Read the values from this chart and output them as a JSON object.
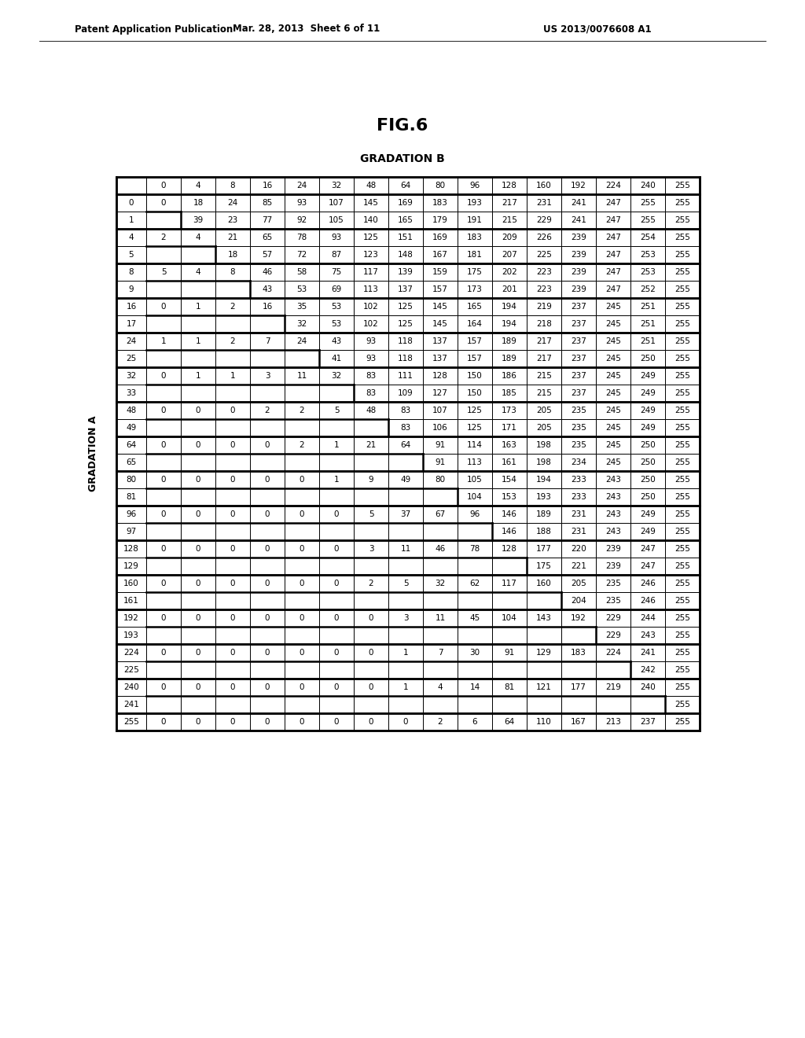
{
  "title": "FIG.6",
  "subtitle": "GRADATION B",
  "header_label_left": "GRADATION A",
  "patent_left": "Patent Application Publication",
  "patent_mid": "Mar. 28, 2013  Sheet 6 of 11",
  "patent_right": "US 2013/0076608 A1",
  "col_headers": [
    0,
    4,
    8,
    16,
    24,
    32,
    48,
    64,
    80,
    96,
    128,
    160,
    192,
    224,
    240,
    255
  ],
  "rows": [
    {
      "label": "0",
      "data": [
        "0",
        "18",
        "24",
        "85",
        "93",
        "107",
        "145",
        "169",
        "183",
        "193",
        "217",
        "231",
        "241",
        "247",
        "255",
        "255"
      ]
    },
    {
      "label": "1",
      "data": [
        null,
        "39",
        "23",
        "77",
        "92",
        "105",
        "140",
        "165",
        "179",
        "191",
        "215",
        "229",
        "241",
        "247",
        "255",
        "255"
      ]
    },
    {
      "label": "4",
      "data": [
        "2",
        "4",
        "21",
        "65",
        "78",
        "93",
        "125",
        "151",
        "169",
        "183",
        "209",
        "226",
        "239",
        "247",
        "254",
        "255"
      ]
    },
    {
      "label": "5",
      "data": [
        null,
        null,
        "18",
        "57",
        "72",
        "87",
        "123",
        "148",
        "167",
        "181",
        "207",
        "225",
        "239",
        "247",
        "253",
        "255"
      ]
    },
    {
      "label": "8",
      "data": [
        "5",
        "4",
        "8",
        "46",
        "58",
        "75",
        "117",
        "139",
        "159",
        "175",
        "202",
        "223",
        "239",
        "247",
        "253",
        "255"
      ]
    },
    {
      "label": "9",
      "data": [
        null,
        null,
        null,
        "43",
        "53",
        "69",
        "113",
        "137",
        "157",
        "173",
        "201",
        "223",
        "239",
        "247",
        "252",
        "255"
      ]
    },
    {
      "label": "16",
      "data": [
        "0",
        "1",
        "2",
        "16",
        "35",
        "53",
        "102",
        "125",
        "145",
        "165",
        "194",
        "219",
        "237",
        "245",
        "251",
        "255"
      ]
    },
    {
      "label": "17",
      "data": [
        null,
        null,
        null,
        null,
        "32",
        "53",
        "102",
        "125",
        "145",
        "164",
        "194",
        "218",
        "237",
        "245",
        "251",
        "255"
      ]
    },
    {
      "label": "24",
      "data": [
        "1",
        "1",
        "2",
        "7",
        "24",
        "43",
        "93",
        "118",
        "137",
        "157",
        "189",
        "217",
        "237",
        "245",
        "251",
        "255"
      ]
    },
    {
      "label": "25",
      "data": [
        null,
        null,
        null,
        null,
        null,
        "41",
        "93",
        "118",
        "137",
        "157",
        "189",
        "217",
        "237",
        "245",
        "250",
        "255"
      ]
    },
    {
      "label": "32",
      "data": [
        "0",
        "1",
        "1",
        "3",
        "11",
        "32",
        "83",
        "111",
        "128",
        "150",
        "186",
        "215",
        "237",
        "245",
        "249",
        "255"
      ]
    },
    {
      "label": "33",
      "data": [
        null,
        null,
        null,
        null,
        null,
        null,
        "83",
        "109",
        "127",
        "150",
        "185",
        "215",
        "237",
        "245",
        "249",
        "255"
      ]
    },
    {
      "label": "48",
      "data": [
        "0",
        "0",
        "0",
        "2",
        "2",
        "5",
        "48",
        "83",
        "107",
        "125",
        "173",
        "205",
        "235",
        "245",
        "249",
        "255"
      ]
    },
    {
      "label": "49",
      "data": [
        null,
        null,
        null,
        null,
        null,
        null,
        null,
        "83",
        "106",
        "125",
        "171",
        "205",
        "235",
        "245",
        "249",
        "255"
      ]
    },
    {
      "label": "64",
      "data": [
        "0",
        "0",
        "0",
        "0",
        "2",
        "1",
        "21",
        "64",
        "91",
        "114",
        "163",
        "198",
        "235",
        "245",
        "250",
        "255"
      ]
    },
    {
      "label": "65",
      "data": [
        null,
        null,
        null,
        null,
        null,
        null,
        null,
        null,
        "91",
        "113",
        "161",
        "198",
        "234",
        "245",
        "250",
        "255"
      ]
    },
    {
      "label": "80",
      "data": [
        "0",
        "0",
        "0",
        "0",
        "0",
        "1",
        "9",
        "49",
        "80",
        "105",
        "154",
        "194",
        "233",
        "243",
        "250",
        "255"
      ]
    },
    {
      "label": "81",
      "data": [
        null,
        null,
        null,
        null,
        null,
        null,
        null,
        null,
        null,
        "104",
        "153",
        "193",
        "233",
        "243",
        "250",
        "255"
      ]
    },
    {
      "label": "96",
      "data": [
        "0",
        "0",
        "0",
        "0",
        "0",
        "0",
        "5",
        "37",
        "67",
        "96",
        "146",
        "189",
        "231",
        "243",
        "249",
        "255"
      ]
    },
    {
      "label": "97",
      "data": [
        null,
        null,
        null,
        null,
        null,
        null,
        null,
        null,
        null,
        null,
        "146",
        "188",
        "231",
        "243",
        "249",
        "255"
      ]
    },
    {
      "label": "128",
      "data": [
        "0",
        "0",
        "0",
        "0",
        "0",
        "0",
        "3",
        "11",
        "46",
        "78",
        "128",
        "177",
        "220",
        "239",
        "247",
        "255"
      ]
    },
    {
      "label": "129",
      "data": [
        null,
        null,
        null,
        null,
        null,
        null,
        null,
        null,
        null,
        null,
        null,
        "175",
        "221",
        "239",
        "247",
        "255"
      ]
    },
    {
      "label": "160",
      "data": [
        "0",
        "0",
        "0",
        "0",
        "0",
        "0",
        "2",
        "5",
        "32",
        "62",
        "117",
        "160",
        "205",
        "235",
        "246",
        "255"
      ]
    },
    {
      "label": "161",
      "data": [
        null,
        null,
        null,
        null,
        null,
        null,
        null,
        null,
        null,
        null,
        null,
        null,
        "204",
        "235",
        "246",
        "255"
      ]
    },
    {
      "label": "192",
      "data": [
        "0",
        "0",
        "0",
        "0",
        "0",
        "0",
        "0",
        "3",
        "11",
        "45",
        "104",
        "143",
        "192",
        "229",
        "244",
        "255"
      ]
    },
    {
      "label": "193",
      "data": [
        null,
        null,
        null,
        null,
        null,
        null,
        null,
        null,
        null,
        null,
        null,
        null,
        null,
        "229",
        "243",
        "255"
      ]
    },
    {
      "label": "224",
      "data": [
        "0",
        "0",
        "0",
        "0",
        "0",
        "0",
        "0",
        "1",
        "7",
        "30",
        "91",
        "129",
        "183",
        "224",
        "241",
        "255"
      ]
    },
    {
      "label": "225",
      "data": [
        null,
        null,
        null,
        null,
        null,
        null,
        null,
        null,
        null,
        null,
        null,
        null,
        null,
        null,
        "242",
        "255"
      ]
    },
    {
      "label": "240",
      "data": [
        "0",
        "0",
        "0",
        "0",
        "0",
        "0",
        "0",
        "1",
        "4",
        "14",
        "81",
        "121",
        "177",
        "219",
        "240",
        "255"
      ]
    },
    {
      "label": "241",
      "data": [
        null,
        null,
        null,
        null,
        null,
        null,
        null,
        null,
        null,
        null,
        null,
        null,
        null,
        null,
        null,
        "255"
      ]
    },
    {
      "label": "255",
      "data": [
        "0",
        "0",
        "0",
        "0",
        "0",
        "0",
        "0",
        "0",
        "2",
        "6",
        "64",
        "110",
        "167",
        "213",
        "237",
        "255"
      ]
    }
  ]
}
